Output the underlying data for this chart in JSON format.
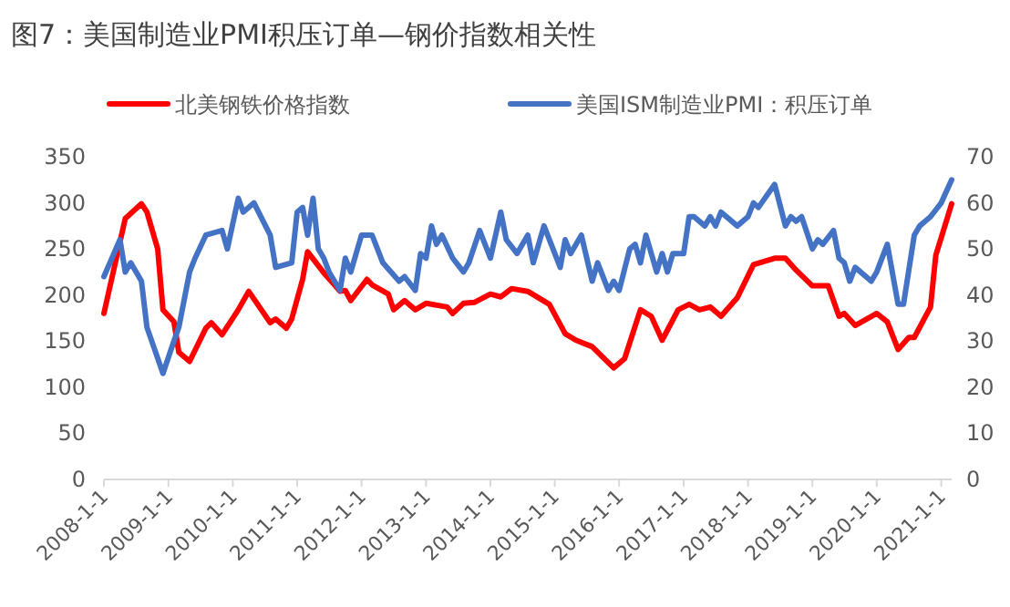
{
  "chart_data": {
    "type": "line",
    "title": "图7：美国制造业PMI积压订单—钢价指数相关性",
    "legend": "top",
    "xlim": [
      "2008-01",
      "2021-03"
    ],
    "xticks": [
      {
        "value": "2008-01-01",
        "label": "2008-1-1"
      },
      {
        "value": "2009-01-01",
        "label": "2009-1-1"
      },
      {
        "value": "2010-01-01",
        "label": "2010-1-1"
      },
      {
        "value": "2011-01-01",
        "label": "2011-1-1"
      },
      {
        "value": "2012-01-01",
        "label": "2012-1-1"
      },
      {
        "value": "2013-01-01",
        "label": "2013-1-1"
      },
      {
        "value": "2014-01-01",
        "label": "2014-1-1"
      },
      {
        "value": "2015-01-01",
        "label": "2015-1-1"
      },
      {
        "value": "2016-01-01",
        "label": "2016-1-1"
      },
      {
        "value": "2017-01-01",
        "label": "2017-1-1"
      },
      {
        "value": "2018-01-01",
        "label": "2018-1-1"
      },
      {
        "value": "2019-01-01",
        "label": "2019-1-1"
      },
      {
        "value": "2020-01-01",
        "label": "2020-1-1"
      },
      {
        "value": "2021-01-01",
        "label": "2021-1-1"
      }
    ],
    "ylim": [
      0,
      350
    ],
    "yticks": [
      0,
      50,
      100,
      150,
      200,
      250,
      300,
      350
    ],
    "y2lim": [
      0,
      70
    ],
    "y2ticks": [
      0,
      10,
      20,
      30,
      40,
      50,
      60,
      70
    ],
    "series": [
      {
        "name": "北美钢铁价格指数",
        "color": "#ff0000",
        "x": [
          "2008-01",
          "2008-05",
          "2008-08",
          "2008-09",
          "2008-11",
          "2008-12",
          "2009-02",
          "2009-03",
          "2009-05",
          "2009-08",
          "2009-09",
          "2009-11",
          "2010-02",
          "2010-04",
          "2010-08",
          "2010-09",
          "2010-11",
          "2010-12",
          "2011-02",
          "2011-03",
          "2011-06",
          "2011-08",
          "2011-09",
          "2011-10",
          "2011-11",
          "2012-02",
          "2012-03",
          "2012-06",
          "2012-07",
          "2012-09",
          "2012-11",
          "2013-01",
          "2013-05",
          "2013-06",
          "2013-08",
          "2013-10",
          "2014-01",
          "2014-03",
          "2014-05",
          "2014-08",
          "2014-12",
          "2015-03",
          "2015-05",
          "2015-08",
          "2015-12",
          "2016-02",
          "2016-05",
          "2016-07",
          "2016-09",
          "2016-12",
          "2017-02",
          "2017-04",
          "2017-06",
          "2017-08",
          "2017-11",
          "2018-02",
          "2018-06",
          "2018-08",
          "2018-10",
          "2019-01",
          "2019-04",
          "2019-06",
          "2019-07",
          "2019-09",
          "2020-01",
          "2020-03",
          "2020-05",
          "2020-07",
          "2020-08",
          "2020-11",
          "2020-12",
          "2021-03"
        ],
        "values": [
          180,
          283,
          299,
          290,
          250,
          184,
          171,
          138,
          128,
          164,
          170,
          157,
          184,
          204,
          170,
          174,
          164,
          174,
          217,
          247,
          224,
          211,
          204,
          205,
          194,
          217,
          211,
          201,
          184,
          194,
          184,
          191,
          187,
          180,
          191,
          192,
          201,
          198,
          207,
          204,
          190,
          158,
          151,
          144,
          121,
          131,
          184,
          177,
          151,
          184,
          190,
          184,
          187,
          177,
          197,
          233,
          240,
          240,
          227,
          210,
          210,
          177,
          180,
          167,
          180,
          171,
          141,
          154,
          154,
          187,
          243,
          299
        ]
      },
      {
        "name": "美国ISM制造业PMI：积压订单",
        "color": "#4472c4",
        "axis": "y2",
        "x": [
          "2008-01",
          "2008-04",
          "2008-05",
          "2008-06",
          "2008-08",
          "2008-09",
          "2008-12",
          "2009-02",
          "2009-03",
          "2009-05",
          "2009-06",
          "2009-08",
          "2009-11",
          "2009-12",
          "2010-02",
          "2010-03",
          "2010-05",
          "2010-08",
          "2010-09",
          "2010-12",
          "2011-01",
          "2011-02",
          "2011-03",
          "2011-04",
          "2011-05",
          "2011-06",
          "2011-07",
          "2011-09",
          "2011-10",
          "2011-11",
          "2012-01",
          "2012-03",
          "2012-05",
          "2012-08",
          "2012-09",
          "2012-11",
          "2012-12",
          "2013-01",
          "2013-02",
          "2013-03",
          "2013-04",
          "2013-06",
          "2013-08",
          "2013-09",
          "2013-11",
          "2014-01",
          "2014-03",
          "2014-04",
          "2014-06",
          "2014-08",
          "2014-09",
          "2014-11",
          "2015-02",
          "2015-03",
          "2015-04",
          "2015-06",
          "2015-08",
          "2015-09",
          "2015-11",
          "2015-12",
          "2016-01",
          "2016-03",
          "2016-04",
          "2016-05",
          "2016-06",
          "2016-08",
          "2016-09",
          "2016-10",
          "2016-11",
          "2017-01",
          "2017-02",
          "2017-03",
          "2017-05",
          "2017-06",
          "2017-07",
          "2017-08",
          "2017-11",
          "2018-01",
          "2018-02",
          "2018-03",
          "2018-06",
          "2018-08",
          "2018-09",
          "2018-10",
          "2018-11",
          "2019-01",
          "2019-02",
          "2019-03",
          "2019-05",
          "2019-06",
          "2019-07",
          "2019-08",
          "2019-09",
          "2019-12",
          "2020-01",
          "2020-03",
          "2020-05",
          "2020-06",
          "2020-08",
          "2020-09",
          "2020-11",
          "2021-01",
          "2021-03"
        ],
        "values": [
          44,
          52,
          45,
          47,
          43,
          33,
          23,
          30,
          33,
          45,
          48,
          53,
          54,
          50,
          61,
          58,
          60,
          53,
          46,
          47,
          58,
          59,
          53,
          61,
          50,
          48,
          45,
          41,
          48,
          45,
          53,
          53,
          47,
          43,
          44,
          41,
          49,
          48,
          55,
          51,
          53,
          48,
          45,
          47,
          54,
          48,
          58,
          52,
          49,
          53,
          47,
          55,
          46,
          52,
          49,
          53,
          43,
          47,
          41,
          43,
          41,
          50,
          51,
          47,
          53,
          45,
          49,
          45,
          49,
          49,
          57,
          57,
          55,
          57,
          55,
          58,
          55,
          57,
          60,
          59,
          64,
          55,
          57,
          56,
          57,
          50,
          52,
          51,
          54,
          48,
          47,
          43,
          46,
          43,
          45,
          51,
          38,
          38,
          53,
          55,
          57,
          60,
          65
        ]
      }
    ]
  }
}
